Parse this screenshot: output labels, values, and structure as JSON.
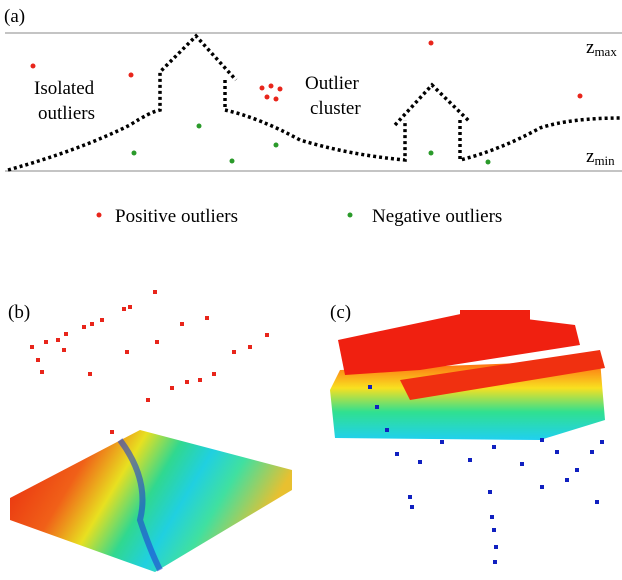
{
  "panel_a": {
    "label": "(a)",
    "isolated_label": [
      "Isolated",
      "outliers"
    ],
    "cluster_label": [
      "Outlier",
      "cluster"
    ],
    "z_max": {
      "symbol": "z",
      "subscript": "max"
    },
    "z_min": {
      "symbol": "z",
      "subscript": "min"
    }
  },
  "legend": {
    "positive": "Positive outliers",
    "negative": "Negative outliers"
  },
  "panel_b": {
    "label": "(b)"
  },
  "panel_c": {
    "label": "(c)"
  }
}
